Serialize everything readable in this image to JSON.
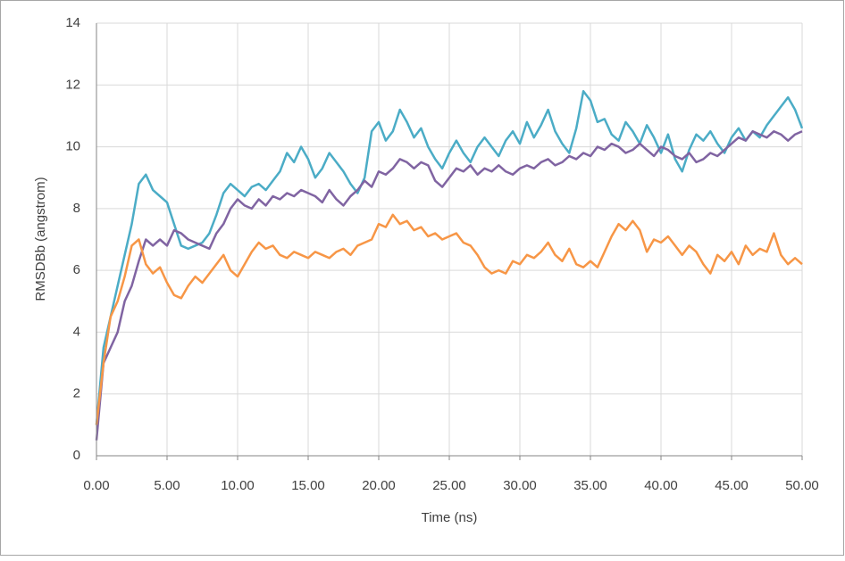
{
  "chart_data": {
    "type": "line",
    "xlabel": "Time (ns)",
    "ylabel": "RMSDBb (angstrom)",
    "xlim": [
      0,
      50
    ],
    "ylim": [
      0,
      14
    ],
    "xticks": [
      {
        "value": 0,
        "label": "0.00"
      },
      {
        "value": 5,
        "label": "5.00"
      },
      {
        "value": 10,
        "label": "10.00"
      },
      {
        "value": 15,
        "label": "15.00"
      },
      {
        "value": 20,
        "label": "20.00"
      },
      {
        "value": 25,
        "label": "25.00"
      },
      {
        "value": 30,
        "label": "30.00"
      },
      {
        "value": 35,
        "label": "35.00"
      },
      {
        "value": 40,
        "label": "40.00"
      },
      {
        "value": 45,
        "label": "45.00"
      },
      {
        "value": 50,
        "label": "50.00"
      }
    ],
    "yticks": [
      0,
      2,
      4,
      6,
      8,
      10,
      12,
      14
    ],
    "grid": true,
    "x": [
      0,
      0.5,
      1,
      1.5,
      2,
      2.5,
      3,
      3.5,
      4,
      4.5,
      5,
      5.5,
      6,
      6.5,
      7,
      7.5,
      8,
      8.5,
      9,
      9.5,
      10,
      10.5,
      11,
      11.5,
      12,
      12.5,
      13,
      13.5,
      14,
      14.5,
      15,
      15.5,
      16,
      16.5,
      17,
      17.5,
      18,
      18.5,
      19,
      19.5,
      20,
      20.5,
      21,
      21.5,
      22,
      22.5,
      23,
      23.5,
      24,
      24.5,
      25,
      25.5,
      26,
      26.5,
      27,
      27.5,
      28,
      28.5,
      29,
      29.5,
      30,
      30.5,
      31,
      31.5,
      32,
      32.5,
      33,
      33.5,
      34,
      34.5,
      35,
      35.5,
      36,
      36.5,
      37,
      37.5,
      38,
      38.5,
      39,
      39.5,
      40,
      40.5,
      41,
      41.5,
      42,
      42.5,
      43,
      43.5,
      44,
      44.5,
      45,
      45.5,
      46,
      46.5,
      47,
      47.5,
      48,
      48.5,
      49,
      49.5,
      50
    ],
    "series": [
      {
        "color": "#4bacc6",
        "values": [
          1,
          3.5,
          4.5,
          5.5,
          6.5,
          7.5,
          8.8,
          9.1,
          8.6,
          8.4,
          8.2,
          7.5,
          6.8,
          6.7,
          6.8,
          6.9,
          7.2,
          7.8,
          8.5,
          8.8,
          8.6,
          8.4,
          8.7,
          8.8,
          8.6,
          8.9,
          9.2,
          9.8,
          9.5,
          10,
          9.6,
          9,
          9.3,
          9.8,
          9.5,
          9.2,
          8.8,
          8.5,
          9,
          10.5,
          10.8,
          10.2,
          10.5,
          11.2,
          10.8,
          10.3,
          10.6,
          10,
          9.6,
          9.3,
          9.8,
          10.2,
          9.8,
          9.5,
          10,
          10.3,
          10,
          9.7,
          10.2,
          10.5,
          10.1,
          10.8,
          10.3,
          10.7,
          11.2,
          10.5,
          10.1,
          9.8,
          10.6,
          11.8,
          11.5,
          10.8,
          10.9,
          10.4,
          10.2,
          10.8,
          10.5,
          10.1,
          10.7,
          10.3,
          9.8,
          10.4,
          9.6,
          9.2,
          9.9,
          10.4,
          10.2,
          10.5,
          10.1,
          9.8,
          10.3,
          10.6,
          10.2,
          10.5,
          10.3,
          10.7,
          11,
          11.3,
          11.6,
          11.2,
          10.6
        ]
      },
      {
        "color": "#8064a2",
        "values": [
          0.5,
          3,
          3.5,
          4,
          5,
          5.5,
          6.3,
          7,
          6.8,
          7,
          6.8,
          7.3,
          7.2,
          7,
          6.9,
          6.8,
          6.7,
          7.2,
          7.5,
          8,
          8.3,
          8.1,
          8,
          8.3,
          8.1,
          8.4,
          8.3,
          8.5,
          8.4,
          8.6,
          8.5,
          8.4,
          8.2,
          8.6,
          8.3,
          8.1,
          8.4,
          8.6,
          8.9,
          8.7,
          9.2,
          9.1,
          9.3,
          9.6,
          9.5,
          9.3,
          9.5,
          9.4,
          8.9,
          8.7,
          9,
          9.3,
          9.2,
          9.4,
          9.1,
          9.3,
          9.2,
          9.4,
          9.2,
          9.1,
          9.3,
          9.4,
          9.3,
          9.5,
          9.6,
          9.4,
          9.5,
          9.7,
          9.6,
          9.8,
          9.7,
          10,
          9.9,
          10.1,
          10,
          9.8,
          9.9,
          10.1,
          9.9,
          9.7,
          10,
          9.9,
          9.7,
          9.6,
          9.8,
          9.5,
          9.6,
          9.8,
          9.7,
          9.9,
          10.1,
          10.3,
          10.2,
          10.5,
          10.4,
          10.3,
          10.5,
          10.4,
          10.2,
          10.4,
          10.5
        ]
      },
      {
        "color": "#f79646",
        "values": [
          1,
          3,
          4.5,
          5,
          5.8,
          6.8,
          7,
          6.2,
          5.9,
          6.1,
          5.6,
          5.2,
          5.1,
          5.5,
          5.8,
          5.6,
          5.9,
          6.2,
          6.5,
          6,
          5.8,
          6.2,
          6.6,
          6.9,
          6.7,
          6.8,
          6.5,
          6.4,
          6.6,
          6.5,
          6.4,
          6.6,
          6.5,
          6.4,
          6.6,
          6.7,
          6.5,
          6.8,
          6.9,
          7,
          7.5,
          7.4,
          7.8,
          7.5,
          7.6,
          7.3,
          7.4,
          7.1,
          7.2,
          7,
          7.1,
          7.2,
          6.9,
          6.8,
          6.5,
          6.1,
          5.9,
          6,
          5.9,
          6.3,
          6.2,
          6.5,
          6.4,
          6.6,
          6.9,
          6.5,
          6.3,
          6.7,
          6.2,
          6.1,
          6.3,
          6.1,
          6.6,
          7.1,
          7.5,
          7.3,
          7.6,
          7.3,
          6.6,
          7,
          6.9,
          7.1,
          6.8,
          6.5,
          6.8,
          6.6,
          6.2,
          5.9,
          6.5,
          6.3,
          6.6,
          6.2,
          6.8,
          6.5,
          6.7,
          6.6,
          7.2,
          6.5,
          6.2,
          6.4,
          6.2
        ]
      }
    ]
  }
}
